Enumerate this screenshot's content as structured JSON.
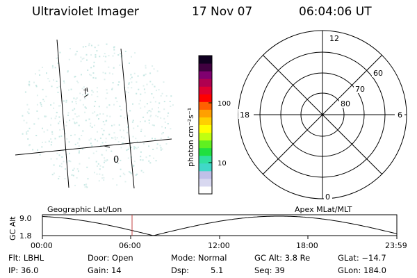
{
  "header": {
    "instrument": "Ultraviolet Imager",
    "date": "17 Nov 07",
    "time": "06:04:06 UT"
  },
  "colorbar": {
    "label": "photon cm⁻²s⁻¹",
    "ticks": [
      "100",
      "10"
    ],
    "colors": [
      "#ffffff",
      "#d8d8f0",
      "#c0c0e8",
      "#40d8c8",
      "#30e0a0",
      "#20e040",
      "#60f020",
      "#c0ff10",
      "#ffff00",
      "#ffd000",
      "#ffa000",
      "#ff6000",
      "#ff0000",
      "#e00030",
      "#b00050",
      "#800070",
      "#400040",
      "#100020"
    ]
  },
  "image_panel": {
    "coast_marks": [
      "†",
      "0"
    ]
  },
  "polar_panel": {
    "mlt_labels": [
      "12",
      "18",
      "6",
      "0"
    ],
    "lat_labels": [
      "60",
      "70",
      "80"
    ]
  },
  "timeline": {
    "left_label": "Geographic Lat/Lon",
    "right_label": "Apex MLat/MLT",
    "axis_title": "GC Alt",
    "y_ticks": [
      "9.0",
      "1.8"
    ],
    "x_ticks": [
      "00:00",
      "06:00",
      "12:00",
      "18:00",
      "23:59"
    ],
    "line_color": "#000000",
    "marker_color": "#c04040",
    "marker_time": "06:04"
  },
  "info": {
    "flt": "Flt: LBHL",
    "ip": "IP: 36.0",
    "door": "Door: Open",
    "gain": "Gain: 14",
    "mode": "Mode: Normal",
    "dsp_label": "Dsp:",
    "dsp_value": "5.1",
    "gcalt": "GC Alt: 3.8 Re",
    "seq": "Seq: 39",
    "glat": "GLat: −14.7",
    "glon": "GLon: 184.0"
  }
}
